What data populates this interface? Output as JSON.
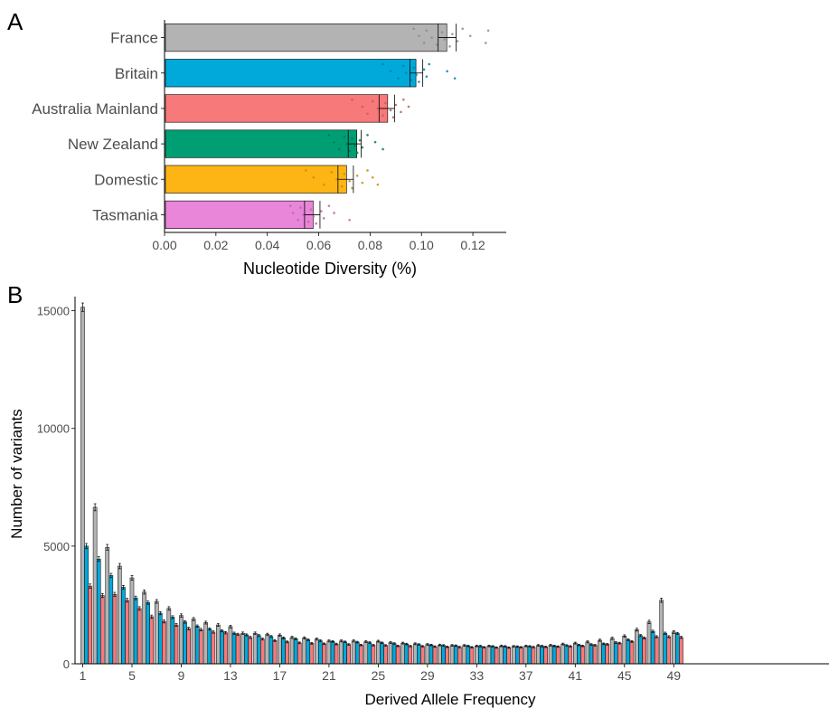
{
  "colors": {
    "France": "#B3B3B3",
    "Britain": "#00A9D9",
    "Australia Mainland": "#F8797A",
    "New Zealand": "#009E73",
    "Domestic": "#FDB515",
    "Tasmania": "#E986D9",
    "axis": "#000000",
    "tick_text": "#4d4d4d"
  },
  "chart_data": [
    {
      "panel_label": "A",
      "type": "bar",
      "orientation": "horizontal",
      "xlabel": "Nucleotide Diversity (%)",
      "ylabel": "",
      "xlim": [
        0,
        0.133
      ],
      "xticks": [
        0.0,
        0.02,
        0.04,
        0.06,
        0.08,
        0.1,
        0.12
      ],
      "xtick_labels": [
        "0.00",
        "0.02",
        "0.04",
        "0.06",
        "0.08",
        "0.10",
        "0.12"
      ],
      "categories": [
        "France",
        "Britain",
        "Australia Mainland",
        "New Zealand",
        "Domestic",
        "Tasmania"
      ],
      "values": [
        0.1095,
        0.0975,
        0.0865,
        0.0745,
        0.0705,
        0.0575
      ],
      "error_low": [
        0.1065,
        0.0955,
        0.0835,
        0.0715,
        0.0675,
        0.0545
      ],
      "error_high": [
        0.1135,
        0.1005,
        0.0895,
        0.0765,
        0.0735,
        0.0605
      ],
      "points": [
        [
          0.097,
          0.099,
          0.101,
          0.102,
          0.104,
          0.106,
          0.108,
          0.109,
          0.111,
          0.112,
          0.114,
          0.116,
          0.119,
          0.125,
          0.126
        ],
        [
          0.085,
          0.088,
          0.091,
          0.093,
          0.094,
          0.096,
          0.097,
          0.098,
          0.099,
          0.101,
          0.102,
          0.103,
          0.11,
          0.113
        ],
        [
          0.073,
          0.077,
          0.079,
          0.081,
          0.083,
          0.085,
          0.086,
          0.088,
          0.089,
          0.09,
          0.092,
          0.093,
          0.095
        ],
        [
          0.064,
          0.066,
          0.068,
          0.07,
          0.071,
          0.072,
          0.073,
          0.074,
          0.075,
          0.076,
          0.077,
          0.079,
          0.082,
          0.085
        ],
        [
          0.055,
          0.058,
          0.062,
          0.065,
          0.067,
          0.069,
          0.07,
          0.072,
          0.073,
          0.075,
          0.077,
          0.079,
          0.081,
          0.083
        ],
        [
          0.049,
          0.05,
          0.052,
          0.053,
          0.054,
          0.056,
          0.057,
          0.058,
          0.059,
          0.061,
          0.062,
          0.064,
          0.066,
          0.072
        ]
      ],
      "grid": false
    },
    {
      "panel_label": "B",
      "type": "bar",
      "xlabel": "Derived Allele Frequency",
      "ylabel": "Number of variants",
      "ylim": [
        0,
        15600
      ],
      "yticks": [
        0,
        5000,
        10000,
        15000
      ],
      "xticks": [
        1,
        5,
        9,
        13,
        17,
        21,
        25,
        29,
        33,
        37,
        41,
        45,
        49
      ],
      "x": [
        1,
        2,
        3,
        4,
        5,
        6,
        7,
        8,
        9,
        10,
        11,
        12,
        13,
        14,
        15,
        16,
        17,
        18,
        19,
        20,
        21,
        22,
        23,
        24,
        25,
        26,
        27,
        28,
        29,
        30,
        31,
        32,
        33,
        34,
        35,
        36,
        37,
        38,
        39,
        40,
        41,
        42,
        43,
        44,
        45,
        46,
        47,
        48,
        49
      ],
      "series": [
        {
          "name": "France",
          "values": [
            15150,
            6650,
            4950,
            4150,
            3650,
            3050,
            2650,
            2350,
            2050,
            1900,
            1750,
            1650,
            1580,
            1300,
            1300,
            1250,
            1220,
            1120,
            1100,
            1050,
            970,
            970,
            970,
            940,
            960,
            900,
            880,
            850,
            820,
            800,
            780,
            780,
            760,
            760,
            760,
            740,
            760,
            780,
            790,
            840,
            880,
            930,
            1000,
            1080,
            1180,
            1450,
            1780,
            2700,
            1350
          ],
          "errors": [
            180,
            150,
            120,
            110,
            100,
            90,
            80,
            75,
            70,
            65,
            60,
            55,
            55,
            50,
            50,
            50,
            48,
            45,
            45,
            45,
            42,
            42,
            42,
            40,
            40,
            40,
            38,
            38,
            38,
            36,
            36,
            36,
            35,
            35,
            35,
            35,
            35,
            36,
            36,
            38,
            40,
            42,
            45,
            48,
            50,
            60,
            70,
            90,
            60
          ]
        },
        {
          "name": "Britain",
          "values": [
            5000,
            4450,
            3750,
            3250,
            2800,
            2600,
            2150,
            1980,
            1780,
            1600,
            1480,
            1400,
            1300,
            1230,
            1200,
            1160,
            1100,
            1060,
            1020,
            980,
            950,
            930,
            920,
            900,
            890,
            860,
            840,
            820,
            800,
            780,
            770,
            760,
            750,
            740,
            740,
            730,
            740,
            750,
            760,
            780,
            800,
            820,
            850,
            900,
            1020,
            1200,
            1380,
            1300,
            1290
          ],
          "errors": [
            110,
            100,
            90,
            80,
            75,
            70,
            65,
            60,
            55,
            50,
            48,
            45,
            45,
            42,
            42,
            40,
            40,
            38,
            38,
            36,
            36,
            35,
            35,
            35,
            35,
            34,
            34,
            33,
            33,
            32,
            32,
            32,
            32,
            32,
            32,
            32,
            32,
            32,
            32,
            33,
            33,
            34,
            35,
            36,
            38,
            42,
            48,
            45,
            45
          ]
        },
        {
          "name": "Australia Mainland",
          "values": [
            3300,
            2900,
            2950,
            2700,
            2350,
            2000,
            1800,
            1650,
            1500,
            1450,
            1350,
            1320,
            1250,
            1120,
            1050,
            990,
            930,
            890,
            870,
            850,
            840,
            820,
            800,
            790,
            780,
            760,
            750,
            740,
            730,
            720,
            710,
            700,
            700,
            690,
            690,
            700,
            710,
            720,
            730,
            740,
            760,
            790,
            830,
            880,
            950,
            1100,
            1150,
            1150,
            1120
          ],
          "errors": [
            90,
            85,
            85,
            80,
            75,
            70,
            65,
            60,
            55,
            55,
            50,
            50,
            48,
            45,
            42,
            40,
            38,
            36,
            36,
            35,
            35,
            34,
            34,
            33,
            33,
            32,
            32,
            32,
            32,
            31,
            31,
            31,
            31,
            30,
            30,
            31,
            31,
            31,
            32,
            32,
            33,
            34,
            35,
            36,
            38,
            42,
            44,
            44,
            44
          ]
        }
      ],
      "grid": false
    }
  ]
}
